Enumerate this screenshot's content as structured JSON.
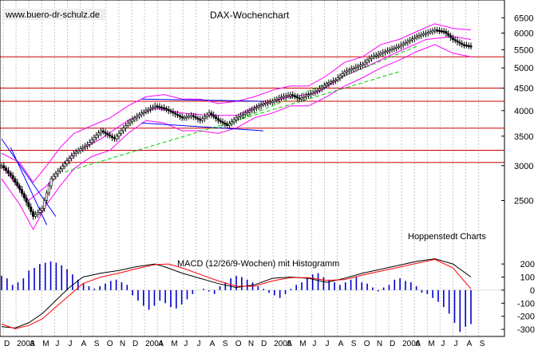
{
  "chart_data": [
    {
      "type": "candlestick",
      "title": "DAX-Wochenchart",
      "watermark": "www.buero-dr-schulz.de",
      "annotation": "Hoppenstedt Charts",
      "y_scale": "log",
      "ylim": [
        2000,
        6900
      ],
      "y_ticks": [
        2500,
        3000,
        3500,
        4000,
        4500,
        5000,
        5500,
        6000,
        6500
      ],
      "y_tick_labels": [
        "2500",
        "3000",
        "3500",
        "4000",
        "4500",
        "5000",
        "5500",
        "6000",
        "6500"
      ],
      "x_tick_labels": [
        "D",
        "2003",
        "A",
        "M",
        "J",
        "J",
        "A",
        "S",
        "O",
        "N",
        "D",
        "2004",
        "A",
        "M",
        "J",
        "J",
        "A",
        "S",
        "O",
        "N",
        "D",
        "2005",
        "A",
        "M",
        "J",
        "J",
        "A",
        "S",
        "O",
        "N",
        "D",
        "2006",
        "A",
        "M",
        "J",
        "J",
        "A",
        "S"
      ],
      "grid": true,
      "colors": {
        "price": "#000000",
        "bands": "#ff00ff",
        "support_resistance": "#cc0000",
        "trend_blue": "#0000ff",
        "trend_green": "#00cc00"
      },
      "horizontal_levels": [
        3050,
        3250,
        3650,
        4200,
        4500,
        5300
      ],
      "price_path": [
        [
          0,
          3000
        ],
        [
          2,
          2850
        ],
        [
          4,
          2650
        ],
        [
          7,
          2300
        ],
        [
          9,
          2400
        ],
        [
          11,
          2800
        ],
        [
          13,
          2950
        ],
        [
          16,
          3200
        ],
        [
          19,
          3350
        ],
        [
          22,
          3600
        ],
        [
          25,
          3450
        ],
        [
          28,
          3750
        ],
        [
          31,
          3950
        ],
        [
          34,
          4100
        ],
        [
          36,
          4050
        ],
        [
          38,
          3950
        ],
        [
          40,
          3850
        ],
        [
          42,
          3900
        ],
        [
          44,
          3800
        ],
        [
          46,
          3950
        ],
        [
          48,
          3800
        ],
        [
          50,
          3700
        ],
        [
          52,
          3850
        ],
        [
          54,
          3950
        ],
        [
          56,
          4050
        ],
        [
          58,
          4150
        ],
        [
          60,
          4200
        ],
        [
          62,
          4300
        ],
        [
          64,
          4350
        ],
        [
          66,
          4250
        ],
        [
          68,
          4350
        ],
        [
          70,
          4450
        ],
        [
          72,
          4600
        ],
        [
          74,
          4700
        ],
        [
          76,
          4900
        ],
        [
          78,
          5000
        ],
        [
          80,
          5100
        ],
        [
          82,
          5300
        ],
        [
          84,
          5400
        ],
        [
          86,
          5500
        ],
        [
          88,
          5600
        ],
        [
          90,
          5750
        ],
        [
          92,
          5900
        ],
        [
          94,
          6000
        ],
        [
          96,
          6100
        ],
        [
          98,
          6050
        ],
        [
          100,
          5800
        ],
        [
          102,
          5650
        ],
        [
          104,
          5600
        ]
      ],
      "upper_band": [
        [
          0,
          3200
        ],
        [
          4,
          3050
        ],
        [
          7,
          2750
        ],
        [
          10,
          3000
        ],
        [
          13,
          3300
        ],
        [
          16,
          3550
        ],
        [
          20,
          3700
        ],
        [
          24,
          3850
        ],
        [
          28,
          4100
        ],
        [
          32,
          4300
        ],
        [
          36,
          4350
        ],
        [
          40,
          4250
        ],
        [
          44,
          4250
        ],
        [
          48,
          4150
        ],
        [
          52,
          4200
        ],
        [
          56,
          4300
        ],
        [
          60,
          4450
        ],
        [
          64,
          4550
        ],
        [
          68,
          4550
        ],
        [
          72,
          4800
        ],
        [
          76,
          5150
        ],
        [
          80,
          5300
        ],
        [
          84,
          5650
        ],
        [
          88,
          5800
        ],
        [
          92,
          6050
        ],
        [
          96,
          6300
        ],
        [
          100,
          6150
        ],
        [
          104,
          6100
        ]
      ],
      "lower_band": [
        [
          0,
          2800
        ],
        [
          4,
          2450
        ],
        [
          7,
          2150
        ],
        [
          10,
          2450
        ],
        [
          13,
          2700
        ],
        [
          16,
          2950
        ],
        [
          20,
          3150
        ],
        [
          24,
          3250
        ],
        [
          28,
          3550
        ],
        [
          32,
          3800
        ],
        [
          36,
          3750
        ],
        [
          40,
          3600
        ],
        [
          44,
          3600
        ],
        [
          48,
          3550
        ],
        [
          52,
          3650
        ],
        [
          56,
          3850
        ],
        [
          60,
          3950
        ],
        [
          64,
          4100
        ],
        [
          68,
          4100
        ],
        [
          72,
          4300
        ],
        [
          76,
          4550
        ],
        [
          80,
          4750
        ],
        [
          84,
          5000
        ],
        [
          88,
          5200
        ],
        [
          92,
          5450
        ],
        [
          96,
          5650
        ],
        [
          100,
          5400
        ],
        [
          104,
          5300
        ]
      ],
      "middle_band": [
        [
          0,
          3000
        ],
        [
          6,
          2500
        ],
        [
          10,
          2700
        ],
        [
          16,
          3200
        ],
        [
          22,
          3450
        ],
        [
          28,
          3800
        ],
        [
          34,
          4050
        ],
        [
          40,
          3950
        ],
        [
          46,
          3900
        ],
        [
          52,
          3900
        ],
        [
          58,
          4150
        ],
        [
          64,
          4300
        ],
        [
          70,
          4400
        ],
        [
          76,
          4800
        ],
        [
          82,
          5100
        ],
        [
          88,
          5450
        ],
        [
          94,
          5800
        ],
        [
          100,
          5900
        ],
        [
          104,
          5800
        ]
      ],
      "trendlines": [
        {
          "color": "blue",
          "points": [
            [
              0,
              3450
            ],
            [
              12,
              2300
            ]
          ]
        },
        {
          "color": "blue",
          "points": [
            [
              2,
              3300
            ],
            [
              10,
              2200
            ]
          ]
        },
        {
          "color": "blue",
          "points": [
            [
              31,
              4250
            ],
            [
              58,
              4200
            ]
          ]
        },
        {
          "color": "blue",
          "points": [
            [
              31,
              3750
            ],
            [
              58,
              3600
            ]
          ]
        },
        {
          "color": "green",
          "points": [
            [
              14,
              2900
            ],
            [
              88,
              4900
            ]
          ]
        },
        {
          "color": "green",
          "points": [
            [
              48,
              3650
            ],
            [
              92,
              5600
            ]
          ]
        }
      ]
    },
    {
      "type": "line",
      "title": "MACD (12/26/9-Wochen) mit Histogramm",
      "ylim": [
        -330,
        280
      ],
      "y_ticks": [
        -300,
        -200,
        -100,
        0,
        100,
        200
      ],
      "y_tick_labels": [
        "-300",
        "-200",
        "-100",
        "0",
        "100",
        "200"
      ],
      "series": [
        {
          "color": "#000000",
          "points": [
            [
              0,
              -280
            ],
            [
              3,
              -290
            ],
            [
              6,
              -250
            ],
            [
              9,
              -180
            ],
            [
              12,
              -80
            ],
            [
              15,
              20
            ],
            [
              18,
              100
            ],
            [
              22,
              130
            ],
            [
              26,
              150
            ],
            [
              30,
              180
            ],
            [
              34,
              200
            ],
            [
              36,
              180
            ],
            [
              40,
              130
            ],
            [
              44,
              90
            ],
            [
              48,
              50
            ],
            [
              52,
              20
            ],
            [
              56,
              40
            ],
            [
              60,
              90
            ],
            [
              64,
              100
            ],
            [
              68,
              90
            ],
            [
              72,
              60
            ],
            [
              76,
              90
            ],
            [
              80,
              130
            ],
            [
              84,
              160
            ],
            [
              88,
              190
            ],
            [
              92,
              220
            ],
            [
              96,
              240
            ],
            [
              100,
              200
            ],
            [
              104,
              100
            ]
          ]
        },
        {
          "color": "#ff0000",
          "points": [
            [
              0,
              -260
            ],
            [
              3,
              -295
            ],
            [
              6,
              -270
            ],
            [
              9,
              -220
            ],
            [
              12,
              -130
            ],
            [
              15,
              -40
            ],
            [
              18,
              50
            ],
            [
              22,
              100
            ],
            [
              26,
              130
            ],
            [
              30,
              165
            ],
            [
              34,
              195
            ],
            [
              37,
              200
            ],
            [
              40,
              170
            ],
            [
              44,
              120
            ],
            [
              48,
              70
            ],
            [
              52,
              30
            ],
            [
              56,
              30
            ],
            [
              60,
              70
            ],
            [
              64,
              95
            ],
            [
              68,
              95
            ],
            [
              72,
              75
            ],
            [
              76,
              80
            ],
            [
              80,
              115
            ],
            [
              84,
              145
            ],
            [
              88,
              175
            ],
            [
              92,
              205
            ],
            [
              96,
              235
            ],
            [
              100,
              170
            ],
            [
              104,
              10
            ]
          ]
        }
      ],
      "histogram": [
        110,
        90,
        40,
        60,
        90,
        150,
        170,
        200,
        210,
        220,
        210,
        190,
        160,
        120,
        80,
        50,
        30,
        10,
        30,
        50,
        70,
        80,
        60,
        40,
        -40,
        -80,
        -120,
        -150,
        -120,
        -80,
        -100,
        -130,
        -140,
        -110,
        -70,
        -30,
        0,
        10,
        -10,
        -30,
        30,
        60,
        90,
        110,
        100,
        80,
        60,
        30,
        10,
        -20,
        -40,
        -60,
        -30,
        10,
        40,
        60,
        90,
        120,
        130,
        100,
        80,
        60,
        40,
        60,
        80,
        100,
        60,
        50,
        20,
        -10,
        20,
        40,
        80,
        90,
        70,
        60,
        30,
        -20,
        -30,
        -60,
        -90,
        -130,
        -180,
        -250,
        -320,
        -280,
        -260
      ]
    }
  ]
}
